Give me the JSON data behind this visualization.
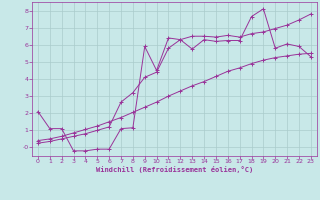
{
  "bg_color": "#c8e8e8",
  "grid_color": "#aacccc",
  "line_color": "#993399",
  "marker": "+",
  "xlabel": "Windchill (Refroidissement éolien,°C)",
  "xlim": [
    -0.5,
    23.5
  ],
  "ylim": [
    -0.5,
    8.5
  ],
  "yticks": [
    0,
    1,
    2,
    3,
    4,
    5,
    6,
    7,
    8
  ],
  "xticks": [
    0,
    1,
    2,
    3,
    4,
    5,
    6,
    7,
    8,
    9,
    10,
    11,
    12,
    13,
    14,
    15,
    16,
    17,
    18,
    19,
    20,
    21,
    22,
    23
  ],
  "line1_x": [
    0,
    1,
    2,
    3,
    4,
    5,
    6,
    7,
    8,
    9,
    10,
    11,
    12,
    13,
    14,
    15,
    16,
    17,
    18,
    19,
    20,
    21,
    22,
    23
  ],
  "line1_y": [
    2.1,
    1.1,
    1.1,
    -0.2,
    -0.2,
    -0.1,
    -0.1,
    1.1,
    1.15,
    5.9,
    4.5,
    6.4,
    6.3,
    5.75,
    6.3,
    6.2,
    6.25,
    6.25,
    7.65,
    8.1,
    5.8,
    6.05,
    5.9,
    5.3
  ],
  "line2_x": [
    0,
    1,
    2,
    3,
    4,
    5,
    6,
    7,
    8,
    9,
    10,
    11,
    12,
    13,
    14,
    15,
    16,
    17,
    18,
    19,
    20,
    21,
    22,
    23
  ],
  "line2_y": [
    0.4,
    0.5,
    0.65,
    0.85,
    1.05,
    1.25,
    1.5,
    1.75,
    2.05,
    2.35,
    2.65,
    3.0,
    3.3,
    3.6,
    3.85,
    4.15,
    4.45,
    4.65,
    4.9,
    5.1,
    5.25,
    5.35,
    5.45,
    5.5
  ],
  "line3_x": [
    0,
    1,
    2,
    3,
    4,
    5,
    6,
    7,
    8,
    9,
    10,
    11,
    12,
    13,
    14,
    15,
    16,
    17,
    18,
    19,
    20,
    21,
    22,
    23
  ],
  "line3_y": [
    0.25,
    0.35,
    0.5,
    0.65,
    0.8,
    1.0,
    1.2,
    2.65,
    3.2,
    4.1,
    4.4,
    5.8,
    6.3,
    6.5,
    6.5,
    6.45,
    6.55,
    6.45,
    6.65,
    6.75,
    6.95,
    7.15,
    7.45,
    7.8
  ]
}
